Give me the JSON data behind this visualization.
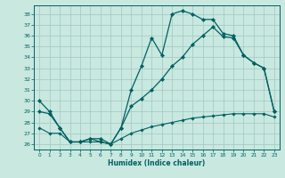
{
  "xlabel": "Humidex (Indice chaleur)",
  "bg_color": "#c8e8e0",
  "grid_color": "#a0c8c0",
  "line_color": "#006060",
  "xlim": [
    -0.5,
    23.5
  ],
  "ylim": [
    25.5,
    38.8
  ],
  "yticks": [
    26,
    27,
    28,
    29,
    30,
    31,
    32,
    33,
    34,
    35,
    36,
    37,
    38
  ],
  "xticks": [
    0,
    1,
    2,
    3,
    4,
    5,
    6,
    7,
    8,
    9,
    10,
    11,
    12,
    13,
    14,
    15,
    16,
    17,
    18,
    19,
    20,
    21,
    22,
    23
  ],
  "curve1_x": [
    0,
    1,
    2,
    3,
    4,
    5,
    6,
    7,
    8,
    9,
    10,
    11,
    12,
    13,
    14,
    15,
    16,
    17,
    18,
    19,
    20,
    21,
    22,
    23
  ],
  "curve1_y": [
    30,
    29,
    27.5,
    26.2,
    26.2,
    26.5,
    26.5,
    26.0,
    27.5,
    31.0,
    33.2,
    35.8,
    34.2,
    38.0,
    38.3,
    38.0,
    37.5,
    37.5,
    36.2,
    36.0,
    34.2,
    33.5,
    33.0,
    29.0
  ],
  "curve2_x": [
    0,
    1,
    2,
    3,
    4,
    5,
    6,
    7,
    8,
    9,
    10,
    11,
    12,
    13,
    14,
    15,
    16,
    17,
    18,
    19,
    20,
    21,
    22,
    23
  ],
  "curve2_y": [
    29.0,
    28.8,
    27.5,
    26.2,
    26.2,
    26.5,
    26.2,
    26.0,
    27.5,
    29.5,
    30.2,
    31.0,
    32.0,
    33.2,
    34.0,
    35.2,
    36.0,
    36.8,
    35.9,
    35.8,
    34.2,
    33.5,
    33.0,
    29.0
  ],
  "curve3_x": [
    0,
    1,
    2,
    3,
    4,
    5,
    6,
    7,
    8,
    9,
    10,
    11,
    12,
    13,
    14,
    15,
    16,
    17,
    18,
    19,
    20,
    21,
    22,
    23
  ],
  "curve3_y": [
    27.5,
    27.0,
    27.0,
    26.2,
    26.2,
    26.2,
    26.2,
    26.0,
    26.5,
    27.0,
    27.3,
    27.6,
    27.8,
    28.0,
    28.2,
    28.4,
    28.5,
    28.6,
    28.7,
    28.8,
    28.8,
    28.8,
    28.8,
    28.5
  ]
}
